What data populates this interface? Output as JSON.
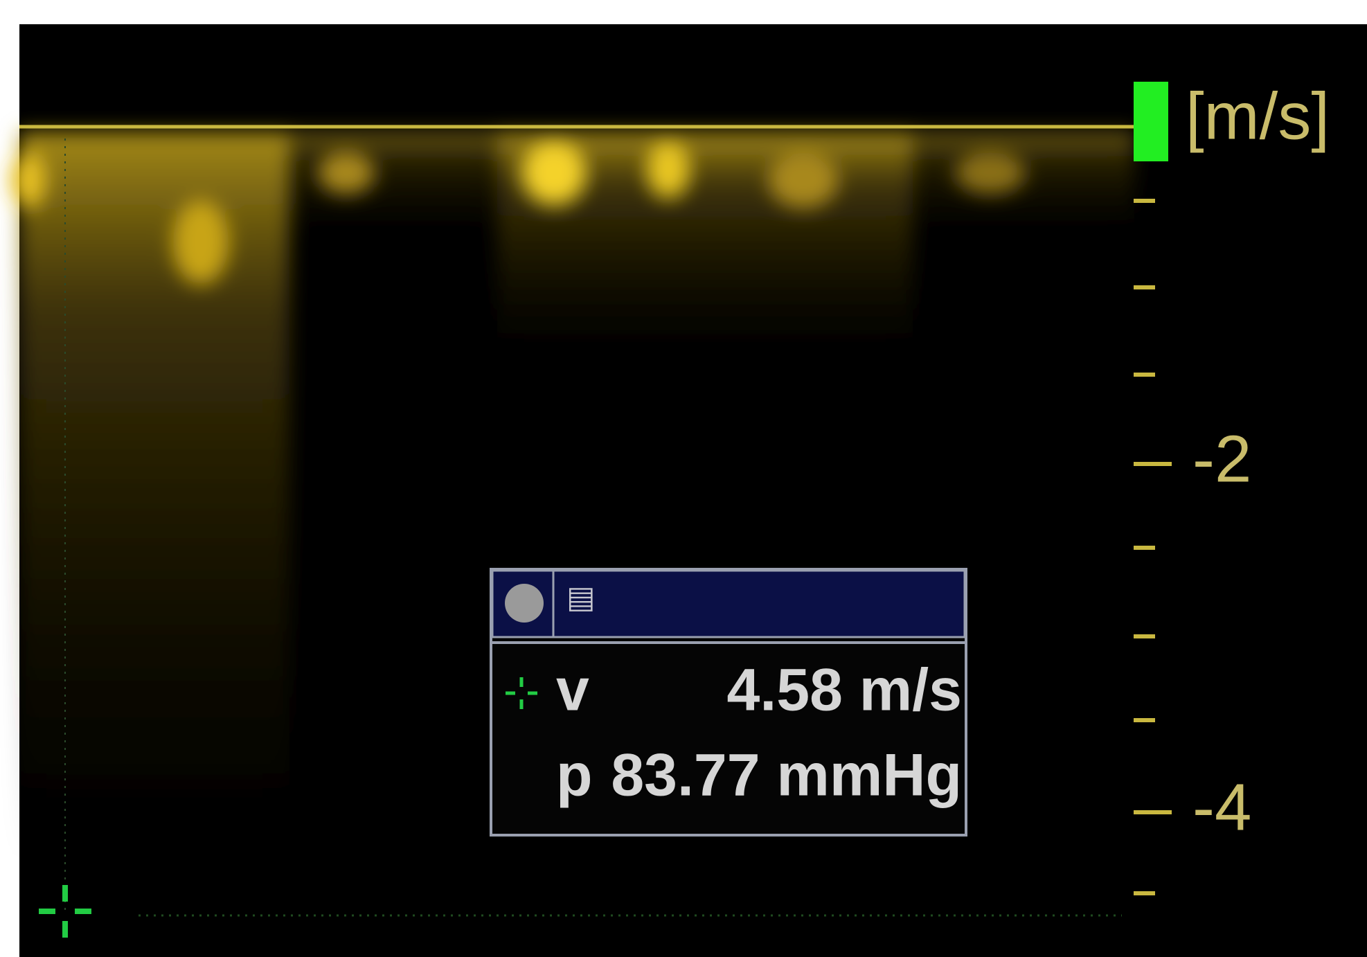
{
  "scale": {
    "unit": "[m/s]",
    "labels": [
      "-2",
      "-4"
    ]
  },
  "measurement": {
    "rows": [
      {
        "label": "v",
        "value": "4.58 m/s"
      },
      {
        "label": "p",
        "value": "83.77 mmHg"
      }
    ]
  }
}
